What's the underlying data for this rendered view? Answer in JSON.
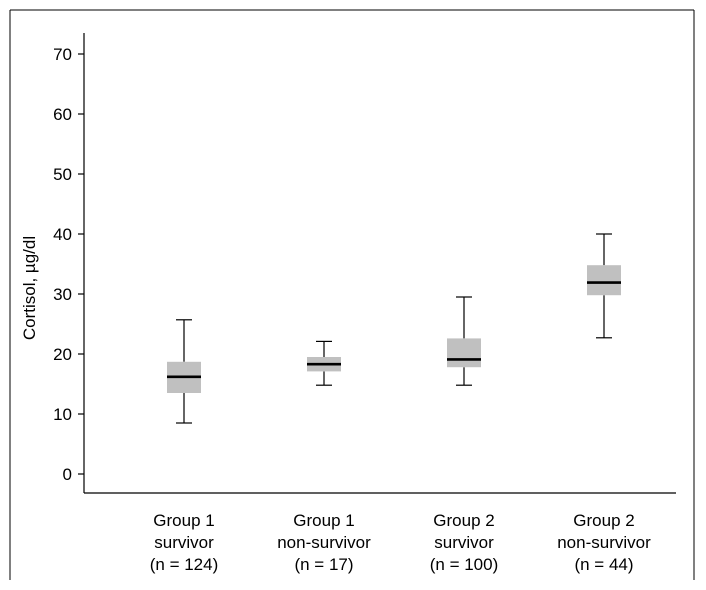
{
  "chart_data": {
    "type": "box",
    "title": "",
    "xlabel": "",
    "ylabel": "Cortisol, µg/dl",
    "ylim": [
      0,
      70
    ],
    "yticks": [
      0,
      10,
      20,
      30,
      40,
      50,
      60,
      70
    ],
    "grid": false,
    "box_color": "#c0c0c0",
    "categories": [
      [
        "Group 1",
        "survivor",
        "(n = 124)"
      ],
      [
        "Group 1",
        "non-survivor",
        "(n = 17)"
      ],
      [
        "Group 2",
        "survivor",
        "(n = 100)"
      ],
      [
        "Group 2",
        "non-survivor",
        "(n = 44)"
      ]
    ],
    "boxes": [
      {
        "min": 8.5,
        "q1": 13.5,
        "median": 16.2,
        "q3": 18.7,
        "max": 25.7
      },
      {
        "min": 14.8,
        "q1": 17.1,
        "median": 18.3,
        "q3": 19.5,
        "max": 22.1
      },
      {
        "min": 14.8,
        "q1": 17.8,
        "median": 19.1,
        "q3": 22.6,
        "max": 29.5
      },
      {
        "min": 22.7,
        "q1": 29.8,
        "median": 31.9,
        "q3": 34.8,
        "max": 40.0
      }
    ]
  }
}
